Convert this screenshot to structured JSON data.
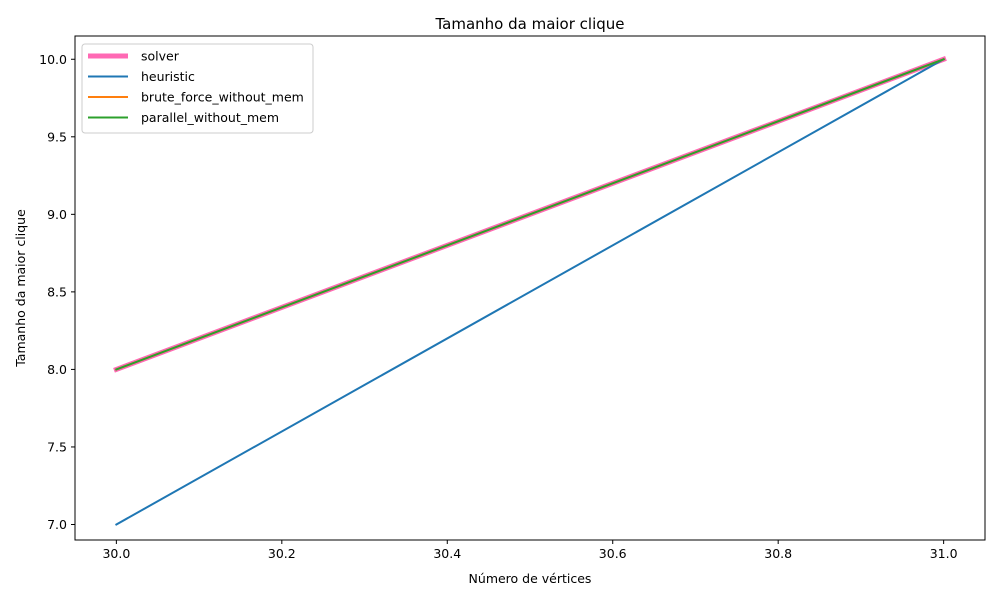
{
  "chart_data": {
    "type": "line",
    "title": "Tamanho da maior clique",
    "xlabel": "Número de vértices",
    "ylabel": "Tamanho da maior clique",
    "xlim": [
      29.95,
      31.05
    ],
    "ylim": [
      6.9,
      10.15
    ],
    "xticks": [
      30.0,
      30.2,
      30.4,
      30.6,
      30.8,
      31.0
    ],
    "xtick_labels": [
      "30.0",
      "30.2",
      "30.4",
      "30.6",
      "30.8",
      "31.0"
    ],
    "yticks": [
      7.0,
      7.5,
      8.0,
      8.5,
      9.0,
      9.5,
      10.0
    ],
    "ytick_labels": [
      "7.0",
      "7.5",
      "8.0",
      "8.5",
      "9.0",
      "9.5",
      "10.0"
    ],
    "grid": false,
    "legend_position": "top-left",
    "x": [
      30,
      31
    ],
    "series": [
      {
        "name": "solver",
        "values": [
          8,
          10
        ],
        "color": "#ff69b4",
        "width": 5
      },
      {
        "name": "heuristic",
        "values": [
          7,
          10
        ],
        "color": "#1f77b4",
        "width": 2
      },
      {
        "name": "brute_force_without_mem",
        "values": [
          8,
          10
        ],
        "color": "#ff7f0e",
        "width": 2
      },
      {
        "name": "parallel_without_mem",
        "values": [
          8,
          10
        ],
        "color": "#2ca02c",
        "width": 2
      }
    ]
  }
}
